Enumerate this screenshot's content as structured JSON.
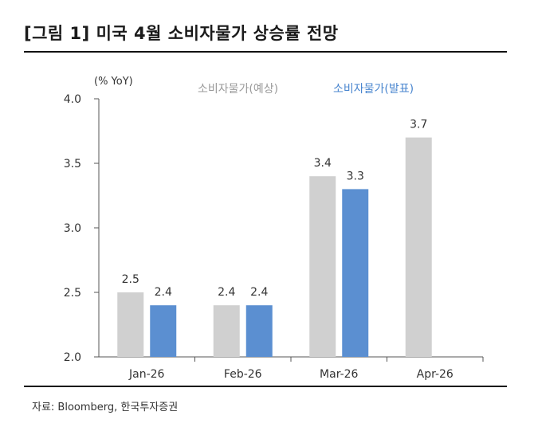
{
  "header": {
    "title": "[그림 1] 미국 4월 소비자물가 상승률 전망"
  },
  "footer": {
    "source": "자료: Bloomberg, 한국투자증권"
  },
  "colors": {
    "forecast": "#d0d0d0",
    "actual": "#5b8fd1",
    "axis": "#555555",
    "legend_forecast_text": "#9a9a9a",
    "legend_actual_text": "#4a86cf"
  },
  "chart_data": {
    "type": "bar",
    "title": "[그림 1] 미국 4월 소비자물가 상승률 전망",
    "ylabel": "(% YoY)",
    "xlabel": "",
    "categories": [
      "Jan-26",
      "Feb-26",
      "Mar-26",
      "Apr-26"
    ],
    "ylim": [
      2.0,
      4.0
    ],
    "yticks": [
      "2.0",
      "2.5",
      "3.0",
      "3.5",
      "4.0"
    ],
    "grid": false,
    "legend_position": "top",
    "series": [
      {
        "name": "소비자물가(예상)",
        "values": [
          2.5,
          2.4,
          3.4,
          3.7
        ],
        "labels": [
          "2.5",
          "2.4",
          "3.4",
          "3.7"
        ]
      },
      {
        "name": "소비자물가(발표)",
        "values": [
          2.4,
          2.4,
          3.3,
          null
        ],
        "labels": [
          "2.4",
          "2.4",
          "3.3",
          ""
        ]
      }
    ]
  }
}
